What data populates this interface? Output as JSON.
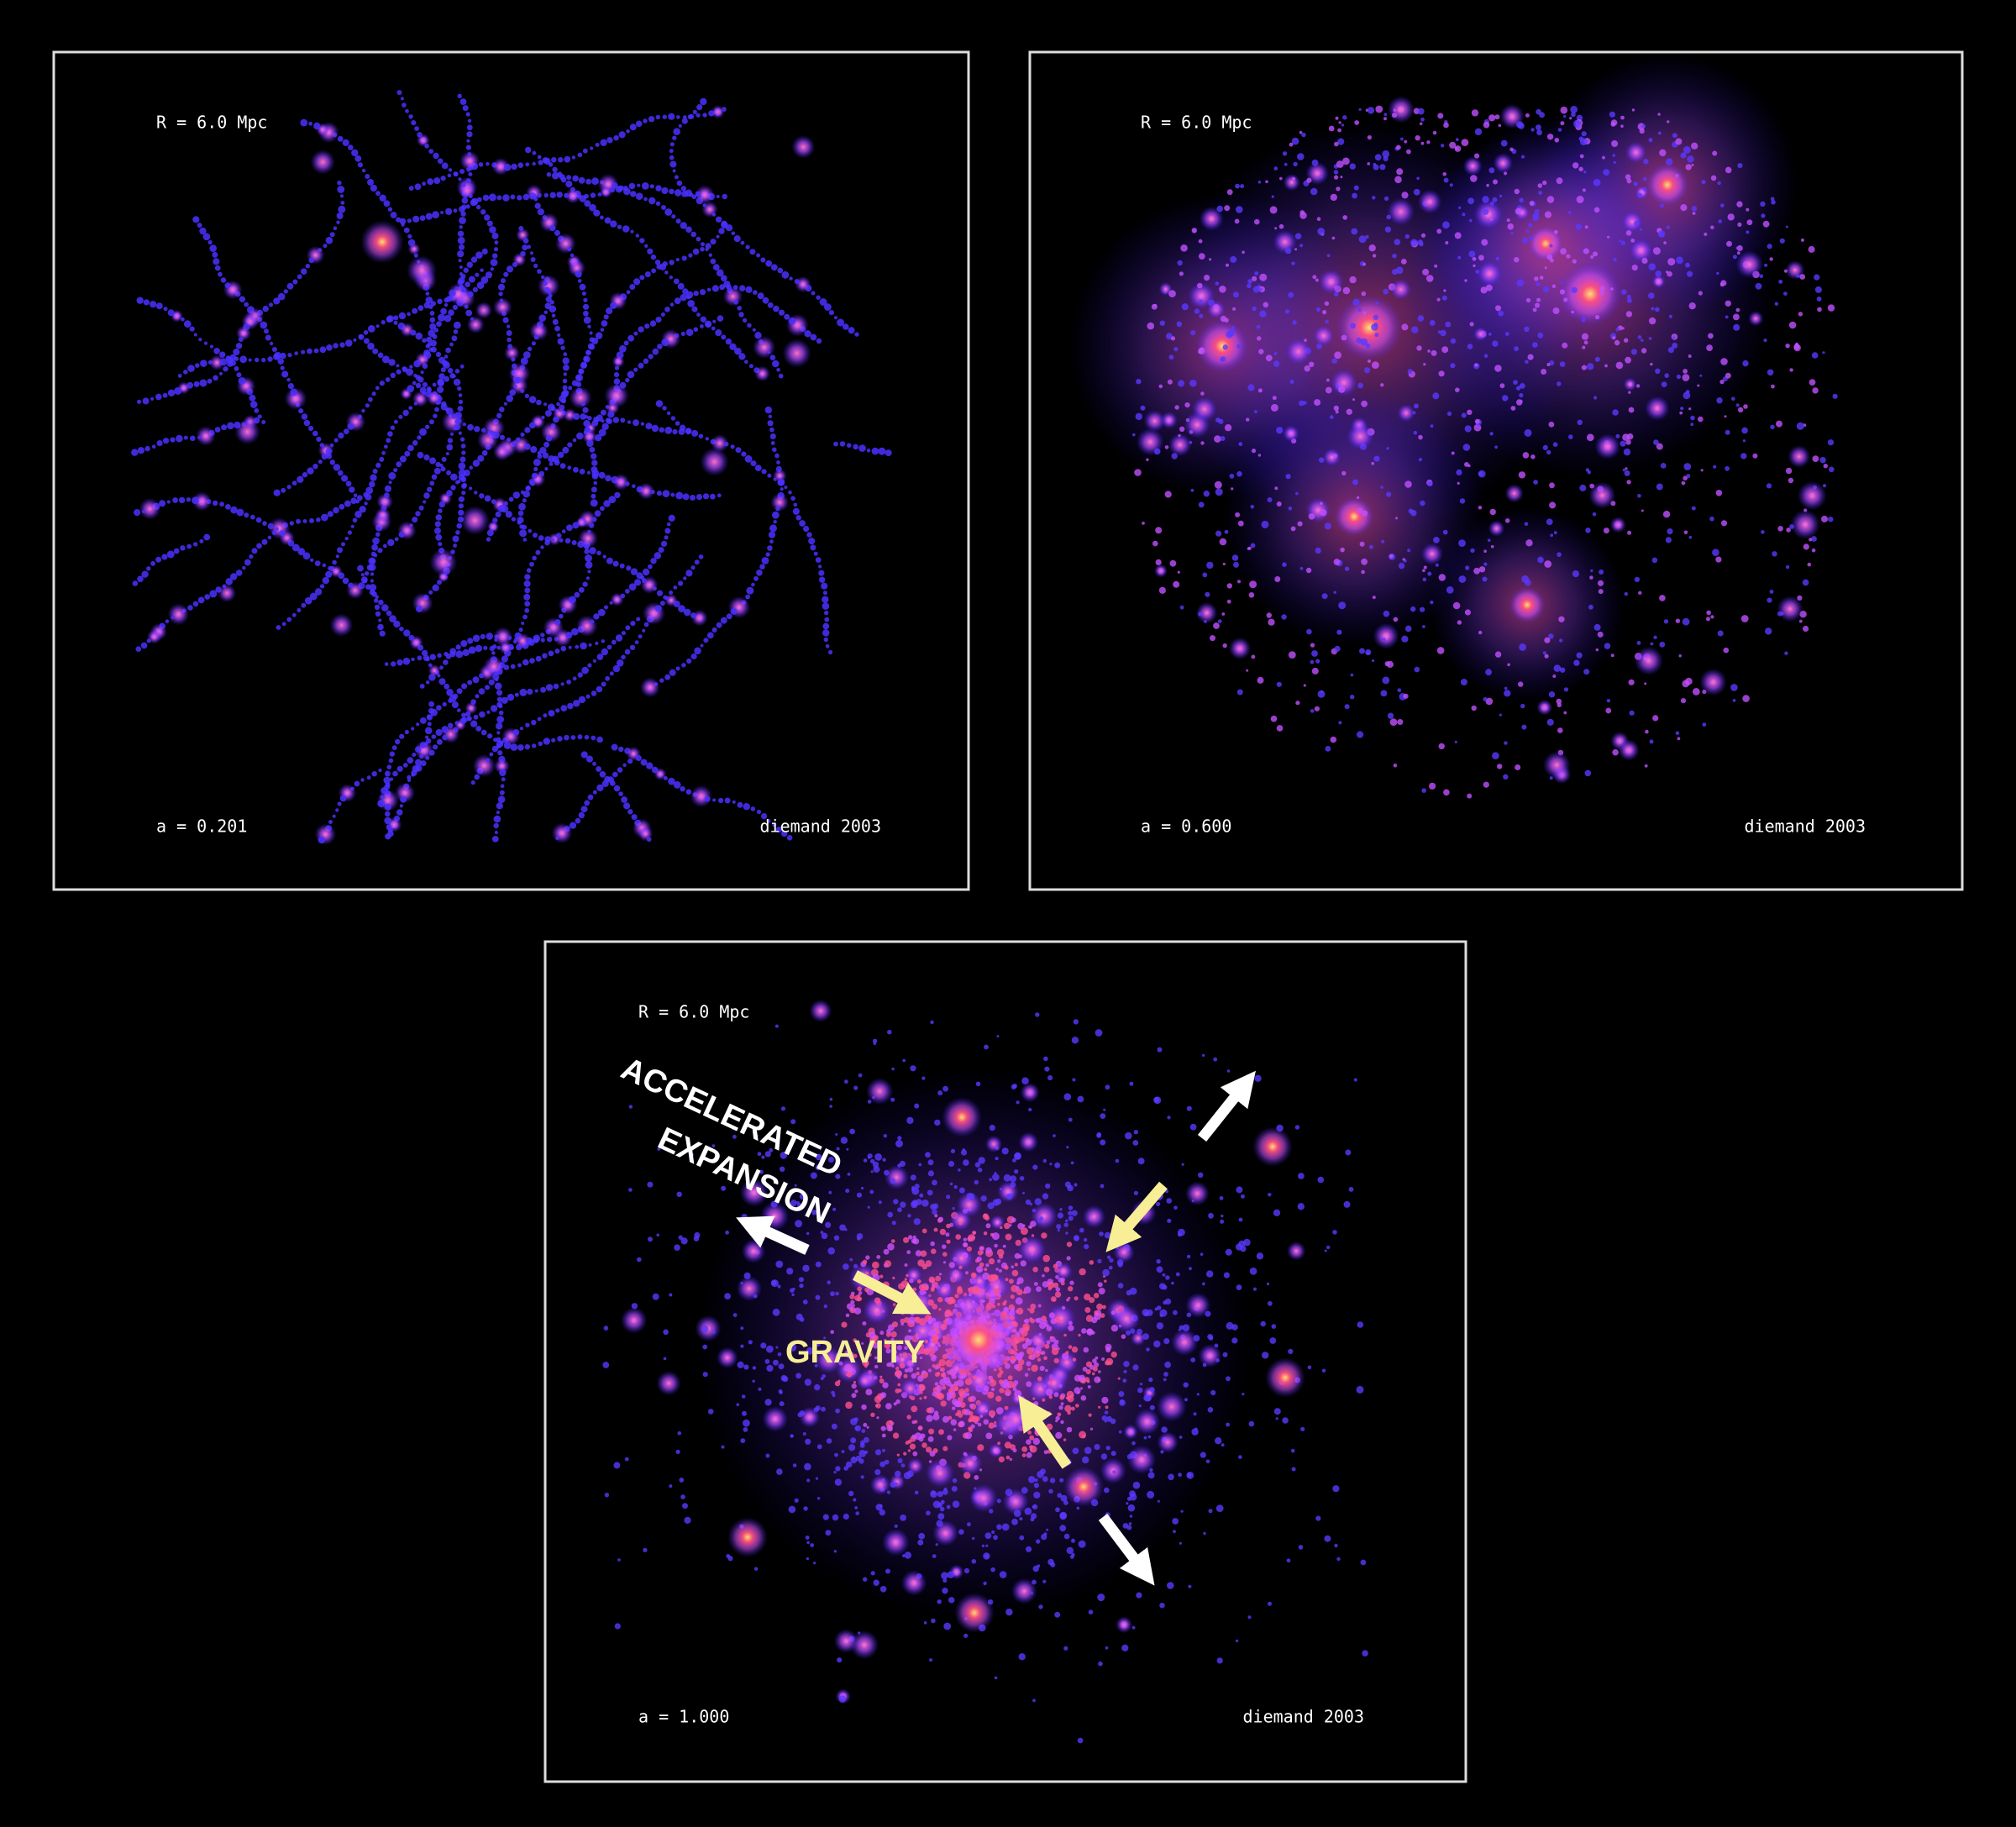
{
  "panels": [
    {
      "scale_label": "R = 6.0 Mpc",
      "time_label": "a = 0.201",
      "credit": "diemand 2003"
    },
    {
      "scale_label": "R = 6.0 Mpc",
      "time_label": "a = 0.600",
      "credit": "diemand 2003"
    },
    {
      "scale_label": "R = 6.0 Mpc",
      "time_label": "a = 1.000",
      "credit": "diemand 2003",
      "annotations": {
        "expansion_line1": "ACCELERATED",
        "expansion_line2": "EXPANSION",
        "gravity": "GRAVITY"
      }
    }
  ]
}
